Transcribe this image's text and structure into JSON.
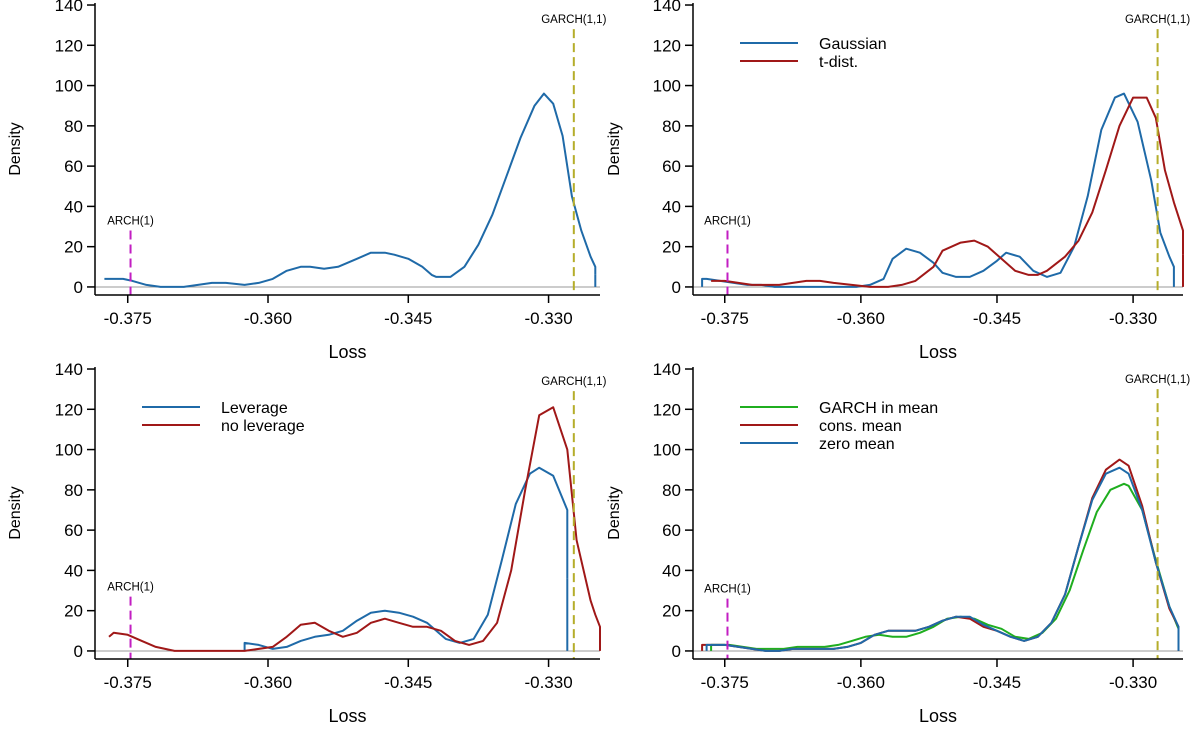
{
  "colors": {
    "blue": "#1f6aa8",
    "red": "#a01818",
    "green": "#1fae1f",
    "garch_line": "#b5ad2a",
    "arch_line": "#c21ec2",
    "baseline": "#9a9a9a"
  },
  "chart_data": [
    {
      "type": "line",
      "xlabel": "Loss",
      "ylabel": "Density",
      "xlim": [
        -0.3785,
        -0.3245
      ],
      "ylim": [
        -4,
        141
      ],
      "xticks": [
        "-0.375",
        "-0.360",
        "-0.345",
        "-0.330"
      ],
      "yticks": [
        "0",
        "20",
        "40",
        "60",
        "80",
        "100",
        "120",
        "140"
      ],
      "vlines": [
        {
          "label": "ARCH(1)",
          "x": -0.3747,
          "y_top": 28,
          "color": "arch_line"
        },
        {
          "label": "GARCH(1,1)",
          "x": -0.3273,
          "y_top": 128,
          "color": "garch_line"
        }
      ],
      "legend": null,
      "series": [
        {
          "color": "blue",
          "x": [
            -0.3775,
            -0.377,
            -0.3755,
            -0.3745,
            -0.373,
            -0.3715,
            -0.37,
            -0.369,
            -0.3675,
            -0.366,
            -0.3645,
            -0.3625,
            -0.361,
            -0.3595,
            -0.358,
            -0.3565,
            -0.3555,
            -0.354,
            -0.3525,
            -0.3505,
            -0.349,
            -0.3475,
            -0.3465,
            -0.345,
            -0.3435,
            -0.3425,
            -0.342,
            -0.3405,
            -0.339,
            -0.3375,
            -0.336,
            -0.3345,
            -0.333,
            -0.3315,
            -0.3305,
            -0.3295,
            -0.3285,
            -0.3275,
            -0.3265,
            -0.3255,
            -0.325,
            -0.325
          ],
          "y": [
            4,
            4,
            4,
            3,
            1,
            0,
            0,
            0,
            1,
            2,
            2,
            1,
            2,
            4,
            8,
            10,
            10,
            9,
            10,
            14,
            17,
            17,
            16,
            14,
            10,
            6,
            5,
            5,
            10,
            21,
            36,
            55,
            74,
            90,
            96,
            91,
            75,
            45,
            28,
            15,
            10,
            6
          ]
        },
        {
          "color": "blue",
          "x": [
            -0.325,
            -0.325
          ],
          "y": [
            6,
            0
          ]
        }
      ]
    },
    {
      "type": "line",
      "xlabel": "Loss",
      "ylabel": "Density",
      "xlim": [
        -0.3785,
        -0.3245
      ],
      "ylim": [
        -4,
        141
      ],
      "xticks": [
        "-0.375",
        "-0.360",
        "-0.345",
        "-0.330"
      ],
      "yticks": [
        "0",
        "20",
        "40",
        "60",
        "80",
        "100",
        "120",
        "140"
      ],
      "vlines": [
        {
          "label": "ARCH(1)",
          "x": -0.3747,
          "y_top": 28,
          "color": "arch_line"
        },
        {
          "label": "GARCH(1,1)",
          "x": -0.3273,
          "y_top": 128,
          "color": "garch_line"
        }
      ],
      "legend": {
        "placement": "top-left",
        "entries": [
          {
            "name": "Gaussian",
            "color": "blue"
          },
          {
            "name": "t-dist.",
            "color": "red"
          }
        ]
      },
      "series": [
        {
          "name": "Gaussian",
          "color": "blue",
          "x": [
            -0.3775,
            -0.3775,
            -0.377,
            -0.3755,
            -0.374,
            -0.3725,
            -0.371,
            -0.3695,
            -0.368,
            -0.3665,
            -0.365,
            -0.3635,
            -0.362,
            -0.3605,
            -0.359,
            -0.3575,
            -0.3565,
            -0.355,
            -0.3535,
            -0.352,
            -0.351,
            -0.3495,
            -0.348,
            -0.3465,
            -0.345,
            -0.344,
            -0.3425,
            -0.341,
            -0.3395,
            -0.338,
            -0.3365,
            -0.335,
            -0.3335,
            -0.332,
            -0.331,
            -0.3295,
            -0.328,
            -0.327,
            -0.326,
            -0.3255,
            -0.3255
          ],
          "y": [
            0,
            4,
            4,
            3,
            2,
            1,
            1,
            0,
            0,
            0,
            0,
            0,
            0,
            0,
            1,
            4,
            14,
            19,
            17,
            12,
            7,
            5,
            5,
            8,
            13,
            17,
            15,
            8,
            5,
            7,
            20,
            45,
            78,
            94,
            96,
            82,
            53,
            27,
            15,
            10,
            0
          ]
        },
        {
          "name": "t-dist.",
          "color": "red",
          "x": [
            -0.3765,
            -0.375,
            -0.3735,
            -0.372,
            -0.37,
            -0.369,
            -0.3675,
            -0.366,
            -0.3645,
            -0.363,
            -0.361,
            -0.359,
            -0.357,
            -0.3555,
            -0.354,
            -0.352,
            -0.351,
            -0.349,
            -0.3475,
            -0.346,
            -0.3445,
            -0.343,
            -0.3415,
            -0.3405,
            -0.3395,
            -0.3375,
            -0.336,
            -0.3345,
            -0.333,
            -0.3315,
            -0.33,
            -0.3285,
            -0.3275,
            -0.3265,
            -0.3255,
            -0.3245,
            -0.3245
          ],
          "y": [
            3,
            3,
            2,
            1,
            1,
            1,
            2,
            3,
            3,
            2,
            1,
            0,
            0,
            1,
            3,
            10,
            18,
            22,
            23,
            20,
            14,
            8,
            6,
            6,
            8,
            15,
            23,
            37,
            58,
            80,
            94,
            94,
            84,
            58,
            42,
            28,
            16
          ]
        },
        {
          "color": "red",
          "x": [
            -0.3245,
            -0.3245
          ],
          "y": [
            16,
            0
          ]
        }
      ]
    },
    {
      "type": "line",
      "xlabel": "Loss",
      "ylabel": "Density",
      "xlim": [
        -0.3785,
        -0.3245
      ],
      "ylim": [
        -4,
        141
      ],
      "xticks": [
        "-0.375",
        "-0.360",
        "-0.345",
        "-0.330"
      ],
      "yticks": [
        "0",
        "20",
        "40",
        "60",
        "80",
        "100",
        "120",
        "140"
      ],
      "vlines": [
        {
          "label": "ARCH(1)",
          "x": -0.3747,
          "y_top": 27,
          "color": "arch_line"
        },
        {
          "label": "GARCH(1,1)",
          "x": -0.3273,
          "y_top": 129,
          "color": "garch_line"
        }
      ],
      "legend": {
        "placement": "top-left",
        "entries": [
          {
            "name": "Leverage",
            "color": "blue"
          },
          {
            "name": "no leverage",
            "color": "red"
          }
        ]
      },
      "series": [
        {
          "name": "Leverage",
          "color": "blue",
          "x": [
            -0.3625,
            -0.3625,
            -0.361,
            -0.3595,
            -0.358,
            -0.3565,
            -0.355,
            -0.3535,
            -0.352,
            -0.3505,
            -0.349,
            -0.3475,
            -0.346,
            -0.3445,
            -0.343,
            -0.342,
            -0.341,
            -0.3395,
            -0.338,
            -0.3365,
            -0.335,
            -0.3335,
            -0.332,
            -0.331,
            -0.3295,
            -0.328,
            -0.328
          ],
          "y": [
            0,
            4,
            3,
            1,
            2,
            5,
            7,
            8,
            10,
            15,
            19,
            20,
            19,
            17,
            14,
            10,
            6,
            4,
            6,
            18,
            45,
            73,
            88,
            91,
            87,
            70,
            36
          ]
        },
        {
          "color": "blue",
          "x": [
            -0.328,
            -0.328
          ],
          "y": [
            36,
            0
          ]
        },
        {
          "name": "no leverage",
          "color": "red",
          "x": [
            -0.377,
            -0.3765,
            -0.375,
            -0.3735,
            -0.372,
            -0.37,
            -0.3685,
            -0.367,
            -0.3655,
            -0.3625,
            -0.3595,
            -0.358,
            -0.3565,
            -0.355,
            -0.3535,
            -0.352,
            -0.3505,
            -0.349,
            -0.3475,
            -0.346,
            -0.3445,
            -0.343,
            -0.3415,
            -0.34,
            -0.3385,
            -0.337,
            -0.3355,
            -0.334,
            -0.3325,
            -0.331,
            -0.3295,
            -0.328,
            -0.327,
            -0.3255,
            -0.325,
            -0.3245,
            -0.3245
          ],
          "y": [
            7,
            9,
            8,
            5,
            2,
            0,
            0,
            0,
            0,
            0,
            2,
            7,
            13,
            14,
            10,
            7,
            9,
            14,
            16,
            14,
            12,
            12,
            10,
            5,
            3,
            5,
            14,
            40,
            80,
            117,
            121,
            100,
            55,
            25,
            18,
            12,
            0
          ]
        }
      ]
    },
    {
      "type": "line",
      "xlabel": "Loss",
      "ylabel": "Density",
      "xlim": [
        -0.3785,
        -0.3245
      ],
      "ylim": [
        -4,
        141
      ],
      "xticks": [
        "-0.375",
        "-0.360",
        "-0.345",
        "-0.330"
      ],
      "yticks": [
        "0",
        "20",
        "40",
        "60",
        "80",
        "100",
        "120",
        "140"
      ],
      "vlines": [
        {
          "label": "ARCH(1)",
          "x": -0.3747,
          "y_top": 26,
          "color": "arch_line"
        },
        {
          "label": "GARCH(1,1)",
          "x": -0.3273,
          "y_top": 130,
          "color": "garch_line"
        }
      ],
      "legend": {
        "placement": "top-left",
        "entries": [
          {
            "name": "GARCH in mean",
            "color": "green"
          },
          {
            "name": "cons. mean",
            "color": "red"
          },
          {
            "name": "zero mean",
            "color": "blue"
          }
        ]
      },
      "series": [
        {
          "name": "GARCH in mean",
          "color": "green",
          "x": [
            -0.3765,
            -0.3765,
            -0.376,
            -0.3745,
            -0.373,
            -0.3715,
            -0.37,
            -0.3685,
            -0.367,
            -0.3655,
            -0.364,
            -0.3625,
            -0.361,
            -0.3595,
            -0.358,
            -0.3565,
            -0.355,
            -0.3535,
            -0.352,
            -0.3505,
            -0.349,
            -0.3475,
            -0.346,
            -0.3445,
            -0.343,
            -0.3415,
            -0.34,
            -0.3385,
            -0.337,
            -0.3355,
            -0.334,
            -0.3325,
            -0.331,
            -0.3305,
            -0.329,
            -0.3275,
            -0.326,
            -0.325,
            -0.325
          ],
          "y": [
            0,
            3,
            3,
            3,
            2,
            1,
            1,
            1,
            2,
            2,
            2,
            3,
            5,
            7,
            8,
            7,
            7,
            9,
            12,
            16,
            17,
            16,
            13,
            11,
            7,
            6,
            9,
            16,
            30,
            50,
            69,
            80,
            83,
            82,
            70,
            45,
            22,
            11,
            0
          ]
        },
        {
          "name": "cons. mean",
          "color": "red",
          "x": [
            -0.3775,
            -0.3775,
            -0.3765,
            -0.375,
            -0.3735,
            -0.372,
            -0.3705,
            -0.369,
            -0.3675,
            -0.366,
            -0.3645,
            -0.363,
            -0.3615,
            -0.36,
            -0.3585,
            -0.357,
            -0.3555,
            -0.354,
            -0.3525,
            -0.351,
            -0.3495,
            -0.348,
            -0.3465,
            -0.345,
            -0.3435,
            -0.342,
            -0.3405,
            -0.339,
            -0.3375,
            -0.336,
            -0.3345,
            -0.333,
            -0.3315,
            -0.3305,
            -0.329,
            -0.3275,
            -0.326,
            -0.325,
            -0.325
          ],
          "y": [
            0,
            3,
            3,
            3,
            2,
            1,
            0,
            0,
            1,
            1,
            1,
            1,
            2,
            4,
            8,
            10,
            10,
            10,
            12,
            15,
            17,
            16,
            12,
            10,
            7,
            5,
            7,
            14,
            28,
            52,
            76,
            90,
            95,
            92,
            72,
            44,
            21,
            12,
            0
          ]
        },
        {
          "name": "zero mean",
          "color": "blue",
          "x": [
            -0.377,
            -0.377,
            -0.3765,
            -0.375,
            -0.3735,
            -0.372,
            -0.3705,
            -0.369,
            -0.3675,
            -0.366,
            -0.3645,
            -0.363,
            -0.3615,
            -0.36,
            -0.3585,
            -0.357,
            -0.3555,
            -0.354,
            -0.3525,
            -0.351,
            -0.3495,
            -0.348,
            -0.3465,
            -0.345,
            -0.3435,
            -0.342,
            -0.3405,
            -0.339,
            -0.3375,
            -0.336,
            -0.3345,
            -0.333,
            -0.3315,
            -0.3305,
            -0.329,
            -0.3275,
            -0.326,
            -0.325,
            -0.325
          ],
          "y": [
            0,
            3,
            3,
            3,
            2,
            1,
            0,
            0,
            1,
            1,
            1,
            1,
            2,
            4,
            8,
            10,
            10,
            10,
            12,
            15,
            17,
            17,
            13,
            10,
            7,
            5,
            7,
            14,
            28,
            52,
            75,
            88,
            91,
            88,
            70,
            44,
            22,
            12,
            0
          ]
        }
      ]
    }
  ]
}
